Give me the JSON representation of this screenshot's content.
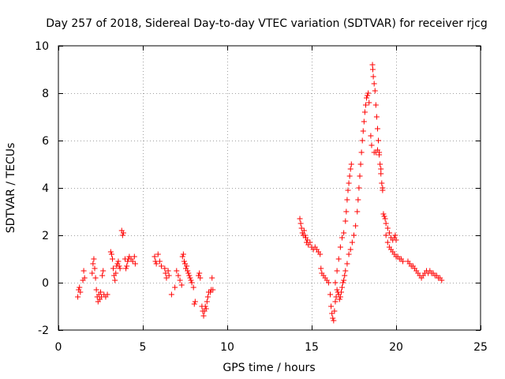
{
  "chart_data": {
    "type": "scatter",
    "title": "Day 257 of 2018, Sidereal Day-to-day VTEC variation (SDTVAR) for receiver rjcg",
    "xlabel": "GPS time / hours",
    "ylabel": "SDTVAR / TECUs",
    "xlim": [
      0,
      25
    ],
    "ylim": [
      -2,
      10
    ],
    "xticks": [
      0,
      5,
      10,
      15,
      20,
      25
    ],
    "yticks": [
      -2,
      0,
      2,
      4,
      6,
      8,
      10
    ],
    "grid": true,
    "marker": "+",
    "marker_color": "#ff0000",
    "series": [
      {
        "name": "SDTVAR",
        "points": [
          [
            1.15,
            -0.6
          ],
          [
            1.2,
            -0.3
          ],
          [
            1.25,
            -0.2
          ],
          [
            1.3,
            -0.4
          ],
          [
            1.45,
            0.1
          ],
          [
            1.5,
            0.5
          ],
          [
            1.55,
            0.2
          ],
          [
            2.0,
            0.4
          ],
          [
            2.05,
            0.8
          ],
          [
            2.1,
            1.0
          ],
          [
            2.15,
            0.6
          ],
          [
            2.2,
            0.2
          ],
          [
            2.25,
            -0.3
          ],
          [
            2.3,
            -0.6
          ],
          [
            2.35,
            -0.8
          ],
          [
            2.4,
            -0.5
          ],
          [
            2.45,
            -0.7
          ],
          [
            2.5,
            -0.4
          ],
          [
            2.55,
            -0.6
          ],
          [
            2.6,
            0.3
          ],
          [
            2.65,
            0.5
          ],
          [
            2.7,
            -0.5
          ],
          [
            2.8,
            -0.6
          ],
          [
            2.9,
            -0.5
          ],
          [
            3.1,
            1.3
          ],
          [
            3.15,
            1.2
          ],
          [
            3.2,
            1.0
          ],
          [
            3.25,
            0.6
          ],
          [
            3.3,
            0.3
          ],
          [
            3.35,
            0.1
          ],
          [
            3.4,
            0.4
          ],
          [
            3.45,
            0.7
          ],
          [
            3.5,
            0.8
          ],
          [
            3.55,
            0.9
          ],
          [
            3.6,
            0.7
          ],
          [
            3.65,
            0.6
          ],
          [
            3.75,
            2.2
          ],
          [
            3.8,
            2.0
          ],
          [
            3.85,
            2.1
          ],
          [
            3.95,
            1.0
          ],
          [
            4.0,
            0.6
          ],
          [
            4.05,
            0.7
          ],
          [
            4.1,
            0.9
          ],
          [
            4.15,
            1.0
          ],
          [
            4.2,
            1.1
          ],
          [
            4.3,
            1.0
          ],
          [
            4.4,
            0.9
          ],
          [
            4.5,
            1.1
          ],
          [
            4.55,
            0.8
          ],
          [
            5.7,
            1.1
          ],
          [
            5.75,
            0.9
          ],
          [
            5.8,
            0.8
          ],
          [
            5.9,
            1.2
          ],
          [
            6.0,
            0.9
          ],
          [
            6.1,
            0.7
          ],
          [
            6.3,
            0.6
          ],
          [
            6.35,
            0.4
          ],
          [
            6.4,
            0.2
          ],
          [
            6.5,
            0.5
          ],
          [
            6.55,
            0.3
          ],
          [
            6.7,
            -0.5
          ],
          [
            6.9,
            -0.2
          ],
          [
            7.0,
            0.5
          ],
          [
            7.1,
            0.3
          ],
          [
            7.2,
            0.1
          ],
          [
            7.3,
            -0.1
          ],
          [
            7.35,
            1.1
          ],
          [
            7.4,
            1.2
          ],
          [
            7.45,
            0.9
          ],
          [
            7.5,
            0.8
          ],
          [
            7.55,
            0.6
          ],
          [
            7.6,
            0.7
          ],
          [
            7.65,
            0.5
          ],
          [
            7.7,
            0.4
          ],
          [
            7.75,
            0.3
          ],
          [
            7.8,
            0.2
          ],
          [
            7.85,
            0.1
          ],
          [
            7.9,
            0.0
          ],
          [
            8.0,
            -0.2
          ],
          [
            8.05,
            -0.9
          ],
          [
            8.1,
            -0.8
          ],
          [
            8.3,
            0.3
          ],
          [
            8.35,
            0.4
          ],
          [
            8.4,
            0.2
          ],
          [
            8.5,
            -1.0
          ],
          [
            8.55,
            -1.2
          ],
          [
            8.6,
            -1.4
          ],
          [
            8.65,
            -1.2
          ],
          [
            8.7,
            -1.0
          ],
          [
            8.75,
            -1.1
          ],
          [
            8.8,
            -0.8
          ],
          [
            8.85,
            -0.6
          ],
          [
            8.9,
            -0.4
          ],
          [
            9.0,
            -0.4
          ],
          [
            9.05,
            -0.3
          ],
          [
            9.1,
            0.2
          ],
          [
            9.15,
            -0.3
          ],
          [
            14.3,
            2.7
          ],
          [
            14.35,
            2.5
          ],
          [
            14.4,
            2.3
          ],
          [
            14.45,
            2.1
          ],
          [
            14.5,
            2.0
          ],
          [
            14.55,
            2.2
          ],
          [
            14.6,
            2.0
          ],
          [
            14.65,
            1.9
          ],
          [
            14.7,
            1.7
          ],
          [
            14.75,
            1.8
          ],
          [
            14.8,
            1.6
          ],
          [
            14.9,
            1.7
          ],
          [
            15.0,
            1.5
          ],
          [
            15.1,
            1.4
          ],
          [
            15.2,
            1.5
          ],
          [
            15.3,
            1.4
          ],
          [
            15.4,
            1.3
          ],
          [
            15.5,
            1.2
          ],
          [
            15.55,
            0.6
          ],
          [
            15.6,
            0.4
          ],
          [
            15.7,
            0.3
          ],
          [
            15.8,
            0.2
          ],
          [
            15.9,
            0.1
          ],
          [
            16.0,
            0.0
          ],
          [
            16.1,
            -0.5
          ],
          [
            16.15,
            -1.0
          ],
          [
            16.2,
            -1.3
          ],
          [
            16.25,
            -1.5
          ],
          [
            16.3,
            -1.6
          ],
          [
            16.35,
            -1.2
          ],
          [
            16.4,
            -0.8
          ],
          [
            16.45,
            -0.6
          ],
          [
            16.5,
            -0.3
          ],
          [
            16.55,
            -0.4
          ],
          [
            16.6,
            -0.5
          ],
          [
            16.65,
            -0.7
          ],
          [
            16.7,
            -0.6
          ],
          [
            16.75,
            -0.4
          ],
          [
            16.8,
            -0.2
          ],
          [
            16.85,
            0.0
          ],
          [
            16.9,
            0.1
          ],
          [
            16.95,
            0.3
          ],
          [
            16.4,
            0.0
          ],
          [
            16.5,
            0.5
          ],
          [
            16.6,
            1.0
          ],
          [
            16.7,
            1.5
          ],
          [
            16.8,
            1.9
          ],
          [
            16.9,
            2.1
          ],
          [
            17.0,
            2.6
          ],
          [
            17.05,
            3.0
          ],
          [
            17.1,
            3.5
          ],
          [
            17.15,
            3.9
          ],
          [
            17.2,
            4.2
          ],
          [
            17.25,
            4.5
          ],
          [
            17.3,
            4.8
          ],
          [
            17.35,
            5.0
          ],
          [
            17.0,
            0.5
          ],
          [
            17.1,
            0.8
          ],
          [
            17.2,
            1.2
          ],
          [
            17.3,
            1.4
          ],
          [
            17.4,
            1.7
          ],
          [
            17.5,
            2.0
          ],
          [
            17.6,
            2.4
          ],
          [
            17.7,
            3.0
          ],
          [
            17.75,
            3.5
          ],
          [
            17.8,
            4.0
          ],
          [
            17.85,
            4.5
          ],
          [
            17.9,
            5.0
          ],
          [
            17.95,
            5.5
          ],
          [
            18.0,
            6.0
          ],
          [
            18.05,
            6.4
          ],
          [
            18.1,
            6.8
          ],
          [
            18.15,
            7.2
          ],
          [
            18.2,
            7.5
          ],
          [
            18.25,
            7.8
          ],
          [
            18.3,
            7.9
          ],
          [
            18.35,
            8.0
          ],
          [
            18.4,
            7.6
          ],
          [
            18.5,
            6.2
          ],
          [
            18.55,
            5.8
          ],
          [
            18.6,
            9.2
          ],
          [
            18.62,
            9.0
          ],
          [
            18.65,
            8.7
          ],
          [
            18.7,
            8.4
          ],
          [
            18.75,
            8.1
          ],
          [
            18.8,
            7.5
          ],
          [
            18.85,
            7.0
          ],
          [
            18.9,
            6.5
          ],
          [
            18.95,
            6.0
          ],
          [
            19.0,
            5.5
          ],
          [
            19.05,
            5.0
          ],
          [
            19.1,
            4.6
          ],
          [
            19.15,
            4.2
          ],
          [
            19.2,
            3.9
          ],
          [
            18.7,
            5.5
          ],
          [
            18.8,
            5.5
          ],
          [
            18.9,
            5.6
          ],
          [
            19.0,
            5.4
          ],
          [
            19.1,
            4.8
          ],
          [
            19.2,
            4.0
          ],
          [
            19.25,
            2.9
          ],
          [
            19.3,
            2.8
          ],
          [
            19.35,
            2.7
          ],
          [
            19.4,
            2.5
          ],
          [
            19.5,
            2.3
          ],
          [
            19.6,
            2.1
          ],
          [
            19.7,
            1.9
          ],
          [
            19.8,
            1.8
          ],
          [
            19.9,
            1.9
          ],
          [
            19.95,
            2.0
          ],
          [
            20.0,
            1.8
          ],
          [
            19.4,
            2.0
          ],
          [
            19.5,
            1.7
          ],
          [
            19.6,
            1.5
          ],
          [
            19.7,
            1.4
          ],
          [
            19.8,
            1.3
          ],
          [
            19.9,
            1.2
          ],
          [
            20.0,
            1.1
          ],
          [
            20.1,
            1.1
          ],
          [
            20.2,
            1.0
          ],
          [
            20.3,
            1.0
          ],
          [
            20.4,
            0.9
          ],
          [
            20.7,
            0.9
          ],
          [
            20.8,
            0.8
          ],
          [
            20.9,
            0.7
          ],
          [
            21.0,
            0.7
          ],
          [
            21.1,
            0.6
          ],
          [
            21.2,
            0.5
          ],
          [
            21.3,
            0.4
          ],
          [
            21.4,
            0.3
          ],
          [
            21.5,
            0.2
          ],
          [
            21.6,
            0.3
          ],
          [
            21.7,
            0.4
          ],
          [
            21.8,
            0.5
          ],
          [
            21.9,
            0.4
          ],
          [
            22.0,
            0.5
          ],
          [
            22.1,
            0.4
          ],
          [
            22.2,
            0.4
          ],
          [
            22.3,
            0.3
          ],
          [
            22.4,
            0.3
          ],
          [
            22.5,
            0.2
          ],
          [
            22.6,
            0.2
          ],
          [
            22.7,
            0.1
          ]
        ]
      }
    ]
  }
}
